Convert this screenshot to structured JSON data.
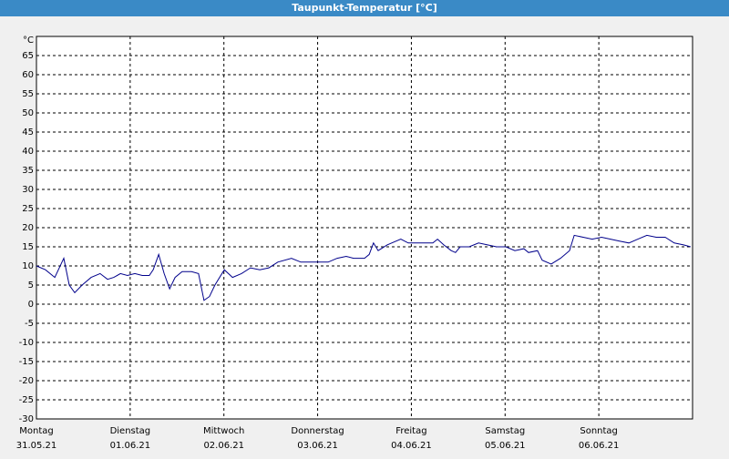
{
  "chart_data": {
    "type": "line",
    "title": "Taupunkt-Temperatur [°C]",
    "ylim": [
      -30,
      70
    ],
    "yticks": [
      -30,
      -25,
      -20,
      -15,
      -10,
      -5,
      0,
      5,
      10,
      15,
      20,
      25,
      30,
      35,
      40,
      45,
      50,
      55,
      60,
      65,
      {
        "value": 70,
        "label": "°C"
      }
    ],
    "xlim": [
      0,
      168
    ],
    "xticks": [
      {
        "value": 0,
        "label": "Montag"
      },
      {
        "value": 24,
        "label": "Dienstag"
      },
      {
        "value": 48,
        "label": "Mittwoch"
      },
      {
        "value": 72,
        "label": "Donnerstag"
      },
      {
        "value": 96,
        "label": "Freitag"
      },
      {
        "value": 120,
        "label": "Samstag"
      },
      {
        "value": 144,
        "label": "Sonntag"
      }
    ],
    "xtick_dates": [
      "31.05.21",
      "01.06.21",
      "02.06.21",
      "03.06.21",
      "04.06.21",
      "05.06.21",
      "06.06.21"
    ],
    "grid": true,
    "x": [
      0,
      2.3,
      4.7,
      7,
      8.4,
      9.8,
      11.7,
      14,
      16.3,
      18.2,
      19.8,
      21.5,
      23.3,
      25.2,
      27.1,
      28.9,
      29.9,
      31.3,
      32.7,
      34.1,
      35.5,
      37.3,
      39.7,
      41.5,
      42.9,
      44.3,
      45.7,
      48.1,
      50.2,
      52.5,
      54.8,
      57.2,
      59.5,
      61.8,
      65.3,
      67.7,
      71.2,
      74.7,
      77,
      79.3,
      81.2,
      84,
      85.2,
      86.3,
      87.5,
      89.8,
      93.3,
      95.2,
      98,
      101.5,
      102.7,
      104.3,
      106.2,
      107.3,
      108.5,
      110.8,
      113.2,
      115.5,
      117.8,
      120.2,
      122.5,
      124.8,
      126,
      128.3,
      129.5,
      131.8,
      134.2,
      136.5,
      137.7,
      140,
      142.3,
      144.7,
      147,
      149.3,
      151.7,
      154,
      156.3,
      158.7,
      161,
      163.3,
      165.7,
      167.5
    ],
    "series": [
      {
        "name": "Taupunkt",
        "color": "#00008b",
        "values": [
          10,
          9,
          7,
          12,
          5,
          3,
          5,
          7,
          8,
          6.5,
          7,
          8,
          7.5,
          8,
          7.5,
          7.5,
          9,
          13,
          8,
          4,
          7,
          8.5,
          8.5,
          8,
          1,
          2,
          5,
          9,
          7,
          8,
          9.5,
          9,
          9.5,
          11,
          12,
          11,
          11,
          11,
          12,
          12.5,
          12,
          12,
          13,
          16,
          14,
          15.5,
          17,
          16,
          16,
          16,
          17,
          15.5,
          14,
          13.5,
          15,
          15,
          16,
          15.5,
          15,
          15,
          14,
          14.5,
          13.5,
          14,
          11.5,
          10.5,
          12,
          14,
          18,
          17.5,
          17,
          17.5,
          17,
          16.5,
          16,
          17,
          18,
          17.5,
          17.5,
          16,
          15.5,
          15
        ]
      }
    ]
  }
}
